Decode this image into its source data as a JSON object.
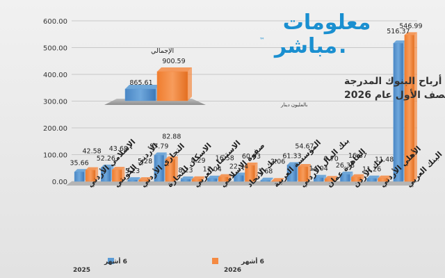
{
  "logo": {
    "line1": "معلومات",
    "line2": "مباشر",
    "tm": "™",
    "dot": "."
  },
  "chart_data": {
    "type": "bar",
    "title_line1": "أرباح البنوك المدرجة",
    "title_line2": "النصف الأول عام 2026",
    "unit": "بالمليون دينار",
    "ylim": [
      0,
      600
    ],
    "yticks": [
      "0.00",
      "100.00",
      "200.00",
      "300.00",
      "400.00",
      "500.00",
      "600.00"
    ],
    "categories": [
      "الإسلامي الأردني",
      "الأردني الكويتي",
      "التجاري الأردني",
      "الاسكان للتجارة",
      "الاستثمار العربي",
      "صفوة الإسلامي",
      "بنك الاتحاد",
      "المؤسسة العربية",
      "بنك المال الأردني",
      "القاهرة عمان",
      "بنك الأردن",
      "الأهلي الأردني",
      "البنك العربي"
    ],
    "series": [
      {
        "name": "6 أشهر 2025",
        "color": "#5b9bd5",
        "values": [
          35.66,
          52.26,
          5.23,
          97.79,
          8.23,
          11.04,
          22.34,
          3.68,
          61.33,
          14.04,
          26.38,
          11.26,
          516.37
        ],
        "labels": [
          "35.66",
          "52.26",
          "5.23",
          "97.79",
          "8.23",
          "11.04",
          "22.34",
          "3.68",
          "61.33",
          "14.04",
          "26.38",
          "11.26",
          "516.37"
        ]
      },
      {
        "name": "6 أشهر 2026",
        "color": "#f58a42",
        "values": [
          42.58,
          43.68,
          5.28,
          82.88,
          8.29,
          16.58,
          60.03,
          2.06,
          54.67,
          9.7,
          16.37,
          11.48,
          546.99
        ],
        "labels": [
          "42.58",
          "43.68",
          "5.28",
          "82.88",
          "8.29",
          "16.58",
          "60.03",
          "2.06",
          "54.67",
          "9.70",
          "16.37",
          "11.48",
          "546.99"
        ]
      }
    ],
    "inset": {
      "title": "الإجمالي",
      "values": [
        865.61,
        900.59
      ],
      "labels": [
        "865.61",
        "900.59"
      ]
    },
    "legend": [
      {
        "line1": "6 أشهر",
        "line2": "2025"
      },
      {
        "line1": "6 أشهر",
        "line2": "2026"
      }
    ]
  }
}
